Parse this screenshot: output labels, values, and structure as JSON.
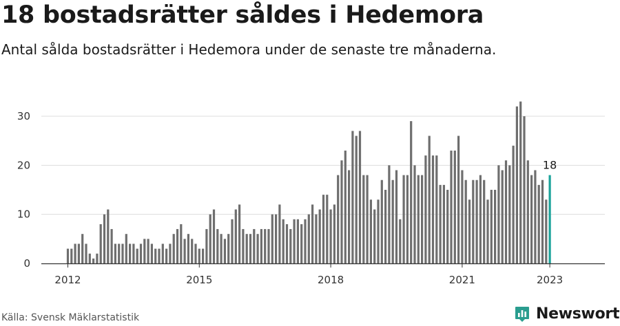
{
  "title": "18 bostadsrätter såldes i Hedemora",
  "subtitle": "Antal sålda bostadsrätter i Hedemora under de senaste tre månaderna.",
  "source": "Källa: Svensk Mäklarstatistik",
  "brand": {
    "name": "Newsworthy",
    "icon": "newsworthy-logo-icon",
    "color": "#2a9d8f"
  },
  "colors": {
    "bar": "#6e6e6e",
    "highlight": "#1aa39a",
    "grid": "#dddddd",
    "axis": "#333333"
  },
  "chart_data": {
    "type": "bar",
    "title": "18 bostadsrätter såldes i Hedemora",
    "xlabel": "",
    "ylabel": "",
    "ylim": [
      0,
      33
    ],
    "yticks": [
      0,
      10,
      20,
      30
    ],
    "xticks": [
      "2012",
      "2015",
      "2018",
      "2021",
      "2023"
    ],
    "x_start": "2012-01",
    "frequency": "monthly",
    "grid": true,
    "legend": "none",
    "highlight_last": true,
    "last_label": "18",
    "values": [
      3,
      3,
      4,
      4,
      6,
      4,
      2,
      1,
      2,
      8,
      10,
      11,
      7,
      4,
      4,
      4,
      6,
      4,
      4,
      3,
      4,
      5,
      5,
      4,
      3,
      3,
      4,
      3,
      4,
      6,
      7,
      8,
      5,
      6,
      5,
      4,
      3,
      3,
      7,
      10,
      11,
      7,
      6,
      5,
      6,
      9,
      11,
      12,
      7,
      6,
      6,
      7,
      6,
      7,
      7,
      7,
      10,
      10,
      12,
      9,
      8,
      7,
      9,
      9,
      8,
      9,
      10,
      12,
      10,
      11,
      14,
      14,
      11,
      12,
      18,
      21,
      23,
      19,
      27,
      26,
      27,
      18,
      18,
      13,
      11,
      13,
      17,
      15,
      20,
      17,
      19,
      9,
      18,
      18,
      29,
      20,
      18,
      18,
      22,
      26,
      22,
      22,
      16,
      16,
      15,
      23,
      23,
      26,
      19,
      17,
      13,
      17,
      17,
      18,
      17,
      13,
      15,
      15,
      20,
      19,
      21,
      20,
      24,
      32,
      33,
      30,
      21,
      18,
      19,
      16,
      17,
      13,
      18
    ]
  }
}
